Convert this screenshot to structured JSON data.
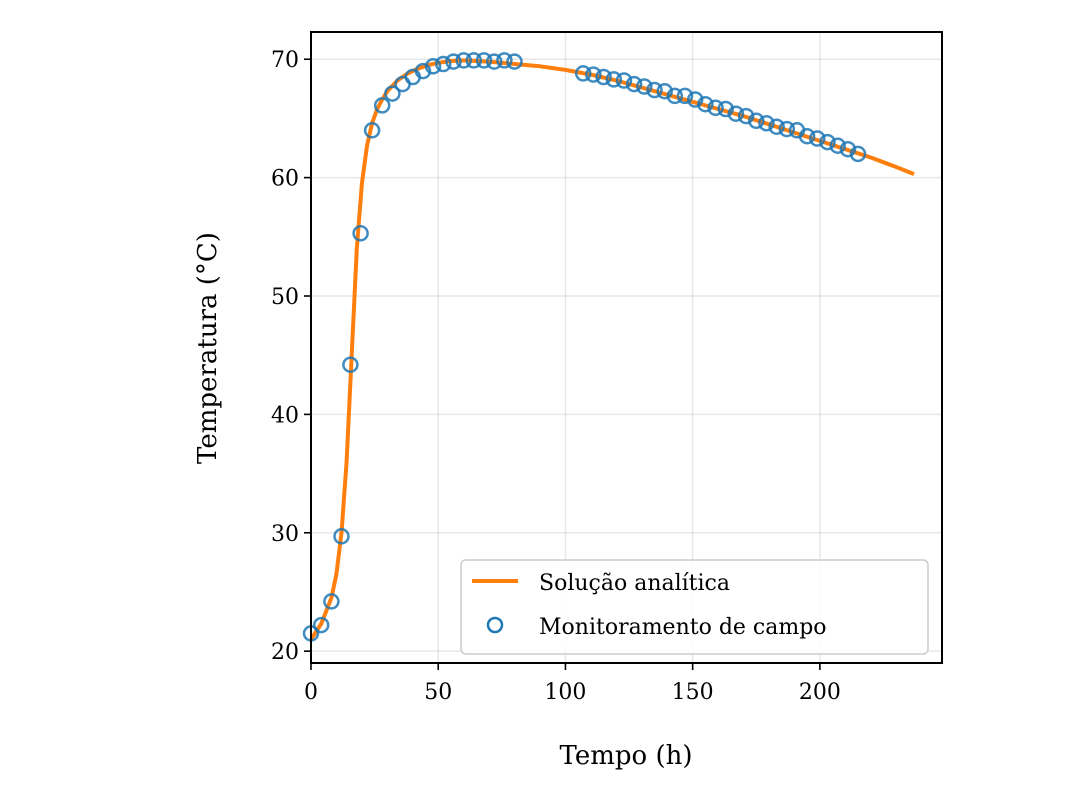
{
  "chart_data": {
    "type": "line",
    "xlabel": "Tempo (h)",
    "ylabel": "Temperatura (°C)",
    "xlim": [
      0,
      248
    ],
    "ylim": [
      19,
      72.3
    ],
    "xticks": [
      0,
      50,
      100,
      150,
      200
    ],
    "yticks": [
      20,
      30,
      40,
      50,
      60,
      70
    ],
    "grid": true,
    "legend_position": "lower right",
    "series": [
      {
        "name": "Solução analítica",
        "kind": "line",
        "color": "#ff7f0e",
        "x": [
          0,
          4,
          8,
          10,
          12,
          14,
          16,
          18,
          20,
          22,
          24,
          26,
          28,
          30,
          34,
          38,
          42,
          46,
          50,
          55,
          60,
          65,
          70,
          80,
          90,
          100,
          110,
          120,
          130,
          140,
          150,
          160,
          170,
          180,
          190,
          200,
          210,
          220,
          230,
          237
        ],
        "y": [
          21.0,
          22.3,
          24.5,
          26.5,
          30.0,
          36.0,
          45.0,
          54.0,
          59.5,
          62.7,
          64.6,
          65.8,
          66.6,
          67.3,
          68.2,
          68.8,
          69.2,
          69.5,
          69.7,
          69.85,
          69.9,
          69.85,
          69.8,
          69.6,
          69.4,
          69.1,
          68.7,
          68.2,
          67.6,
          67.0,
          66.4,
          65.8,
          65.2,
          64.5,
          63.8,
          63.1,
          62.4,
          61.7,
          60.9,
          60.3
        ]
      },
      {
        "name": "Monitoramento de campo",
        "kind": "scatter",
        "color": "#1f77b4",
        "x": [
          0,
          4,
          8,
          12,
          15.5,
          19.5,
          24,
          28,
          32,
          36,
          40,
          44,
          48,
          52,
          56,
          60,
          64,
          68,
          72,
          76,
          80,
          107,
          111,
          115,
          119,
          123,
          127,
          131,
          135,
          139,
          143,
          147,
          151,
          155,
          159,
          163,
          167,
          171,
          175,
          179,
          183,
          187,
          191,
          195,
          199,
          203,
          207,
          211,
          215
        ],
        "y": [
          21.5,
          22.2,
          24.2,
          29.7,
          44.2,
          55.3,
          64.0,
          66.1,
          67.1,
          67.9,
          68.5,
          69.0,
          69.4,
          69.6,
          69.8,
          69.9,
          69.9,
          69.9,
          69.8,
          69.9,
          69.8,
          68.8,
          68.7,
          68.5,
          68.3,
          68.2,
          67.9,
          67.7,
          67.4,
          67.3,
          66.9,
          66.9,
          66.6,
          66.2,
          65.9,
          65.8,
          65.4,
          65.2,
          64.8,
          64.6,
          64.3,
          64.1,
          64.0,
          63.5,
          63.3,
          63.0,
          62.7,
          62.4,
          62.0
        ]
      }
    ]
  }
}
